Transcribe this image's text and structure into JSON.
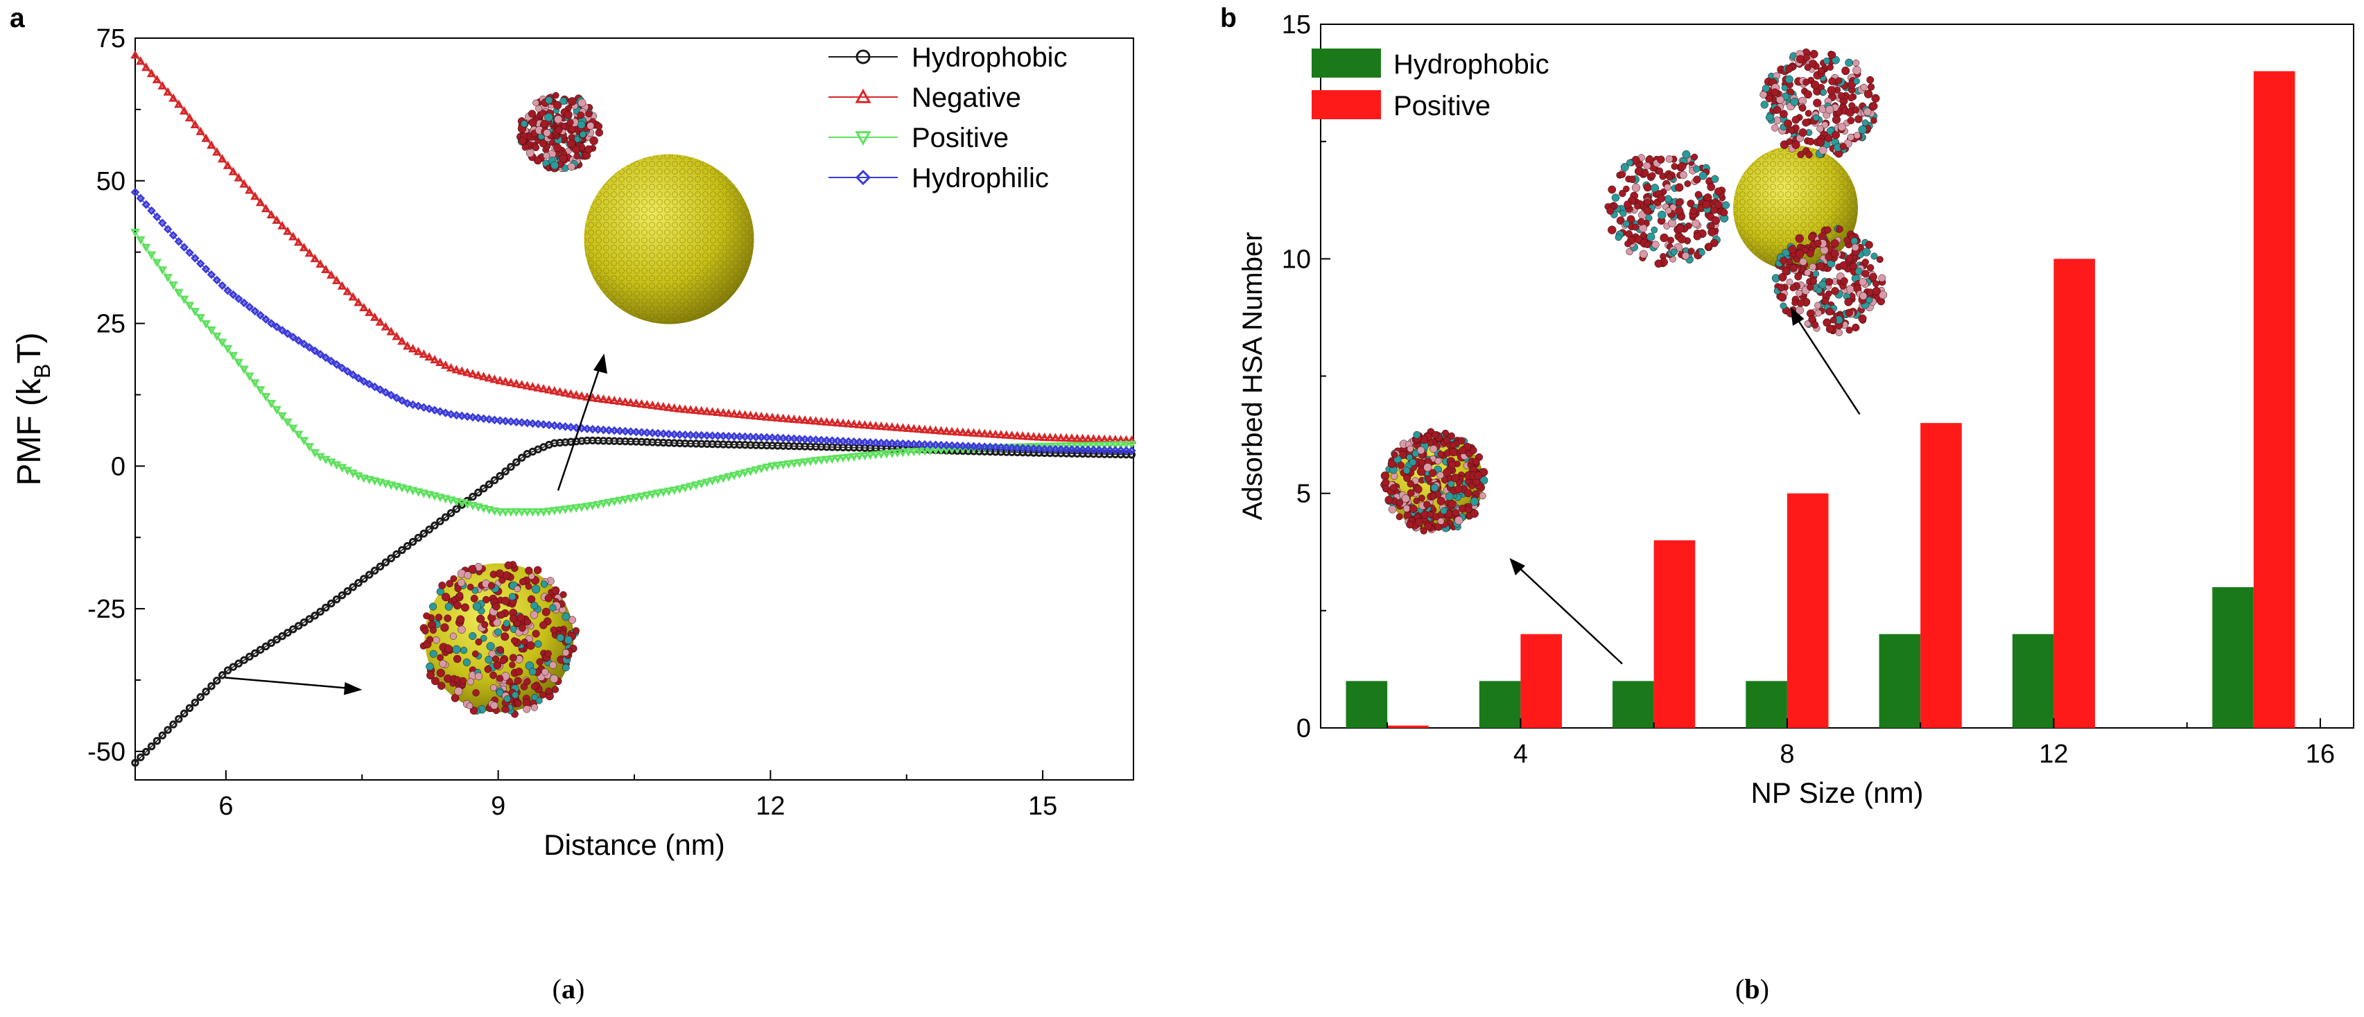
{
  "panels": [
    {
      "letter": "a",
      "caption_open": "(",
      "caption_letter": "a",
      "caption_close": ")"
    },
    {
      "letter": "b",
      "caption_open": "(",
      "caption_letter": "b",
      "caption_close": ")"
    }
  ],
  "colors": {
    "hydrophobic": "#1a1a1a",
    "negative": "#d62728",
    "positive": "#5fe05f",
    "hydrophilic": "#3b3bd9",
    "bar_hydrophobic": "#1a7a1a",
    "bar_positive": "#ff1a1a",
    "nanoparticle": "#c8c018",
    "protein_red": "#a31a24",
    "protein_teal": "#2a9a9a",
    "protein_pink": "#d89aa8"
  },
  "chart_data": [
    {
      "type": "line",
      "title": "",
      "xlabel": "Distance (nm)",
      "ylabel_main": "PMF (k",
      "ylabel_sub": "B",
      "ylabel_end": "T)",
      "xlim": [
        5,
        16
      ],
      "ylim": [
        -55,
        75
      ],
      "xticks": [
        6,
        9,
        12,
        15
      ],
      "xtick_labels": [
        "6",
        "9",
        "12",
        "15"
      ],
      "yticks": [
        -50,
        -25,
        0,
        25,
        50,
        75
      ],
      "ytick_labels": [
        "-50",
        "-25",
        "0",
        "25",
        "50",
        "75"
      ],
      "legend_position": "top-right",
      "grid": false,
      "series": [
        {
          "name": "Hydrophobic",
          "marker": "circle",
          "color": "#1a1a1a",
          "points": [
            [
              5.0,
              -52
            ],
            [
              5.5,
              -44
            ],
            [
              6.0,
              -36
            ],
            [
              6.5,
              -31
            ],
            [
              7.0,
              -26
            ],
            [
              7.5,
              -20
            ],
            [
              8.0,
              -14
            ],
            [
              8.5,
              -8
            ],
            [
              9.0,
              -2
            ],
            [
              9.3,
              2
            ],
            [
              9.6,
              4
            ],
            [
              10.0,
              4.5
            ],
            [
              10.5,
              4.3
            ],
            [
              11.0,
              4.0
            ],
            [
              12.0,
              3.6
            ],
            [
              13.0,
              3.2
            ],
            [
              14.0,
              2.7
            ],
            [
              15.0,
              2.3
            ],
            [
              16.0,
              2.0
            ]
          ]
        },
        {
          "name": "Negative",
          "marker": "triangle-up",
          "color": "#d62728",
          "points": [
            [
              5.0,
              72
            ],
            [
              5.5,
              63
            ],
            [
              6.0,
              53
            ],
            [
              6.5,
              44
            ],
            [
              7.0,
              36
            ],
            [
              7.5,
              28
            ],
            [
              8.0,
              21
            ],
            [
              8.5,
              17
            ],
            [
              9.0,
              15
            ],
            [
              9.5,
              13.5
            ],
            [
              10.0,
              12
            ],
            [
              11.0,
              10
            ],
            [
              12.0,
              8.5
            ],
            [
              13.0,
              7.2
            ],
            [
              14.0,
              6
            ],
            [
              15.0,
              5
            ],
            [
              16.0,
              4.5
            ]
          ]
        },
        {
          "name": "Positive",
          "marker": "triangle-down",
          "color": "#5fe05f",
          "points": [
            [
              5.0,
              41
            ],
            [
              5.5,
              30
            ],
            [
              6.0,
              21
            ],
            [
              6.5,
              11
            ],
            [
              7.0,
              2
            ],
            [
              7.5,
              -2
            ],
            [
              8.0,
              -4
            ],
            [
              8.5,
              -6
            ],
            [
              9.0,
              -8
            ],
            [
              9.5,
              -8
            ],
            [
              10.0,
              -7
            ],
            [
              10.5,
              -5.5
            ],
            [
              11.0,
              -4
            ],
            [
              11.5,
              -2
            ],
            [
              12.0,
              0
            ],
            [
              12.5,
              1
            ],
            [
              13.0,
              1.8
            ],
            [
              13.5,
              2.5
            ],
            [
              14.0,
              3
            ],
            [
              15.0,
              3.5
            ],
            [
              16.0,
              3.8
            ]
          ]
        },
        {
          "name": "Hydrophilic",
          "marker": "diamond",
          "color": "#3b3bd9",
          "points": [
            [
              5.0,
              48
            ],
            [
              5.5,
              39
            ],
            [
              6.0,
              31
            ],
            [
              6.5,
              25
            ],
            [
              7.0,
              20
            ],
            [
              7.5,
              15
            ],
            [
              8.0,
              11
            ],
            [
              8.5,
              9
            ],
            [
              9.0,
              8
            ],
            [
              9.5,
              7.3
            ],
            [
              10.0,
              6.5
            ],
            [
              11.0,
              5.5
            ],
            [
              12.0,
              5
            ],
            [
              13.0,
              4.2
            ],
            [
              14.0,
              3.6
            ],
            [
              15.0,
              3
            ],
            [
              16.0,
              2.7
            ]
          ]
        }
      ]
    },
    {
      "type": "bar",
      "title": "",
      "xlabel": "NP Size (nm)",
      "ylabel": "Adsorbed HSA Number",
      "xlim": [
        1,
        16.5
      ],
      "ylim": [
        0,
        15
      ],
      "xticks": [
        4,
        8,
        12,
        16
      ],
      "xtick_labels": [
        "4",
        "8",
        "12",
        "16"
      ],
      "yticks": [
        0,
        5,
        10,
        15
      ],
      "ytick_labels": [
        "0",
        "5",
        "10",
        "15"
      ],
      "legend_position": "top-left",
      "grid": false,
      "categories": [
        "2",
        "4",
        "6",
        "8",
        "10",
        "12",
        "15"
      ],
      "x": [
        2,
        4,
        6,
        8,
        10,
        12,
        15
      ],
      "series": [
        {
          "name": "Hydrophobic",
          "color": "#1a7a1a",
          "values": [
            1,
            1,
            1,
            1,
            2,
            2,
            3
          ]
        },
        {
          "name": "Positive",
          "color": "#ff1a1a",
          "values": [
            0.05,
            2,
            4,
            5,
            6.5,
            10,
            14
          ]
        }
      ]
    }
  ]
}
